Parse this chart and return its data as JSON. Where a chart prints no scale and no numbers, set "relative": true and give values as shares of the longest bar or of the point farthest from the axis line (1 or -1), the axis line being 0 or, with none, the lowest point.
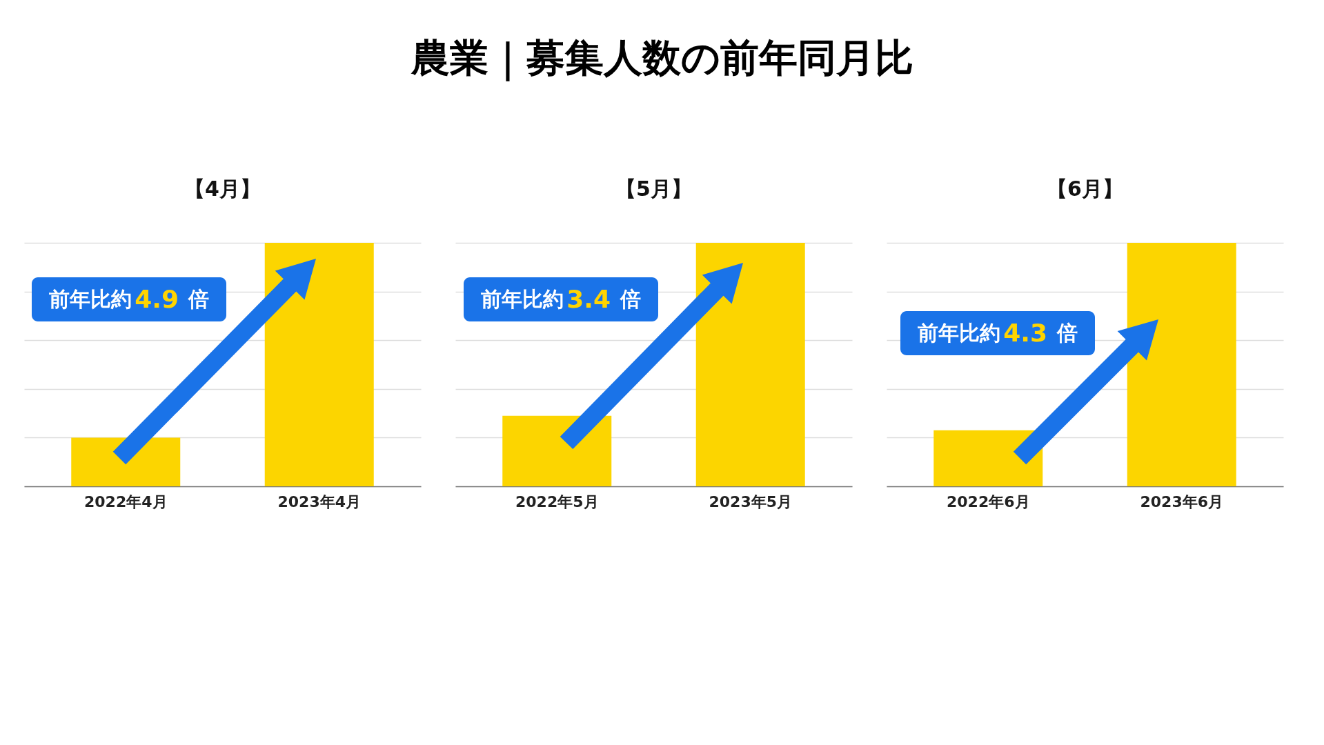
{
  "chart_data": [
    {
      "type": "other",
      "title": "農業｜募集人数の前年同月比"
    },
    {
      "type": "bar",
      "title": "【4月】",
      "categories": [
        "2022年4月",
        "2023年4月"
      ],
      "values": [
        0.2,
        1
      ],
      "color": "#fcd500",
      "relative": true,
      "grid": "y",
      "annotations": [
        "前年比約4.9倍"
      ]
    },
    {
      "type": "bar",
      "title": "【5月】",
      "categories": [
        "2022年5月",
        "2023年5月"
      ],
      "values": [
        0.29,
        1
      ],
      "color": "#fcd500",
      "relative": true,
      "grid": "y",
      "annotations": [
        "前年比約3.4倍"
      ]
    },
    {
      "type": "bar",
      "title": "【6月】",
      "categories": [
        "2022年6月",
        "2023年6月"
      ],
      "values": [
        0.23,
        1
      ],
      "color": "#fcd500",
      "relative": true,
      "grid": "y",
      "annotations": [
        "前年比約4.3倍"
      ]
    }
  ]
}
